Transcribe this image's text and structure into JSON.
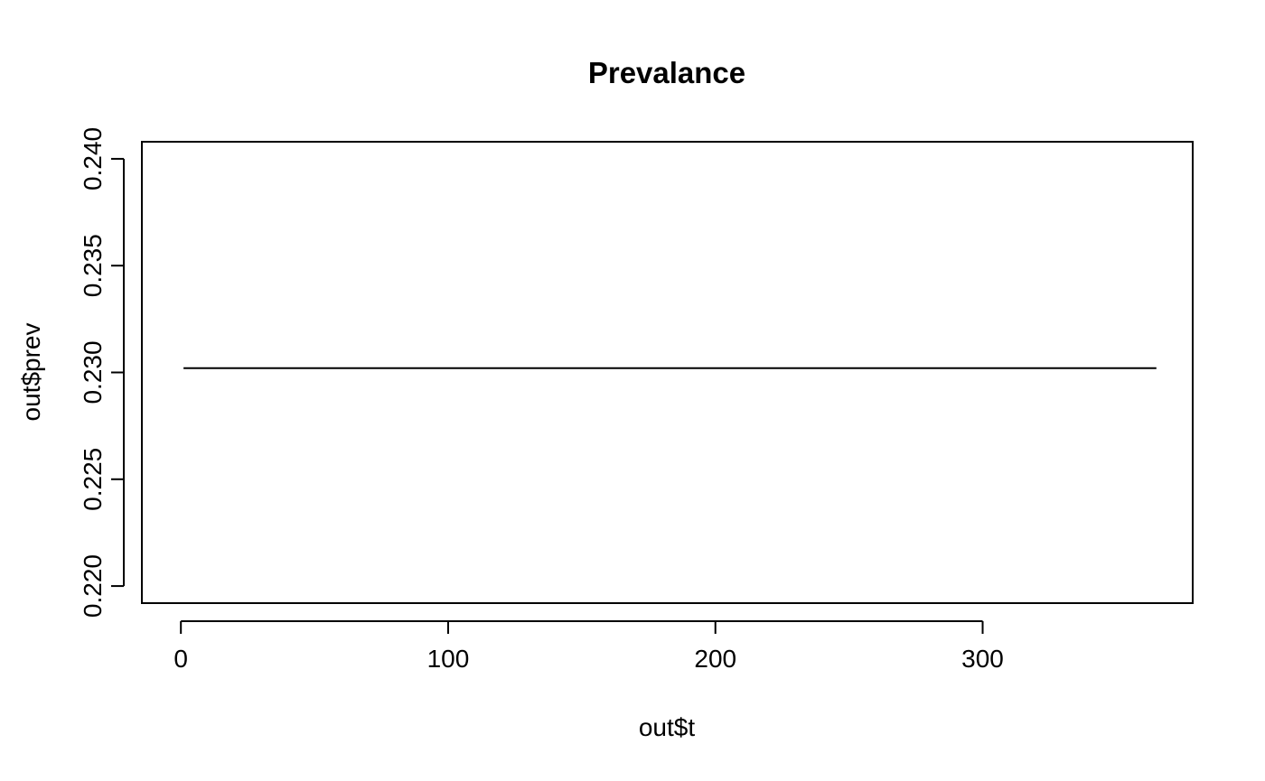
{
  "chart_data": {
    "type": "line",
    "title": "Prevalance",
    "xlabel": "out$t",
    "ylabel": "out$prev",
    "xlim": [
      -14.6,
      378.6
    ],
    "ylim": [
      0.2192,
      0.2408
    ],
    "x_ticks": [
      0,
      100,
      200,
      300
    ],
    "y_ticks": [
      0.22,
      0.225,
      0.23,
      0.235,
      0.24
    ],
    "x_tick_labels": [
      "0",
      "100",
      "200",
      "300"
    ],
    "y_tick_labels": [
      "0.220",
      "0.225",
      "0.230",
      "0.235",
      "0.240"
    ],
    "grid": false,
    "series": [
      {
        "x": [
          1,
          365
        ],
        "y": [
          0.2302,
          0.2302
        ],
        "color": "#000000"
      }
    ]
  }
}
